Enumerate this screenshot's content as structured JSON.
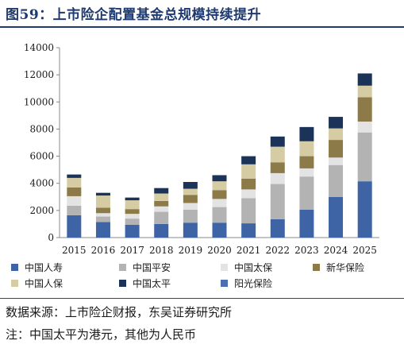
{
  "title": "图59：上市险企配置基金总规模持续提升",
  "chart_data": {
    "type": "bar",
    "stacked": true,
    "categories": [
      "2015",
      "2016",
      "2017",
      "2018",
      "2019",
      "2020",
      "2021",
      "2022",
      "2023",
      "2024",
      "2025"
    ],
    "ylim": [
      0,
      14000
    ],
    "yticks": [
      "0",
      "2000",
      "4000",
      "6000",
      "8000",
      "10000",
      "12000",
      "14000"
    ],
    "series": [
      {
        "name": "中国人寿",
        "color": "#3e64a5",
        "values": [
          1650,
          1150,
          950,
          1000,
          1100,
          1100,
          1050,
          1350,
          2050,
          3000,
          4150
        ]
      },
      {
        "name": "中国平安",
        "color": "#b3b3b3",
        "values": [
          700,
          400,
          450,
          900,
          950,
          1150,
          1850,
          2600,
          2450,
          2350,
          3600
        ]
      },
      {
        "name": "中国太保",
        "color": "#e3e3e3",
        "values": [
          700,
          250,
          350,
          400,
          500,
          600,
          650,
          800,
          600,
          550,
          800
        ]
      },
      {
        "name": "新华保险",
        "color": "#8c7a48",
        "values": [
          650,
          400,
          350,
          400,
          600,
          650,
          800,
          800,
          900,
          1300,
          1800
        ]
      },
      {
        "name": "中国人保",
        "color": "#d6cca4",
        "values": [
          700,
          900,
          650,
          550,
          450,
          650,
          1050,
          1150,
          1100,
          850,
          850
        ]
      },
      {
        "name": "中国太平",
        "color": "#1b3358",
        "values": [
          250,
          200,
          200,
          400,
          500,
          450,
          600,
          750,
          1050,
          850,
          900
        ]
      },
      {
        "name": "阳光保险",
        "color": "#4a6fb0",
        "values": [
          0,
          0,
          0,
          0,
          0,
          0,
          0,
          0,
          0,
          0,
          0
        ]
      }
    ],
    "legend_position": "bottom"
  },
  "source": "数据来源：上市险企财报，东吴证券研究所",
  "note": "注：中国太平为港元，其他为人民币"
}
